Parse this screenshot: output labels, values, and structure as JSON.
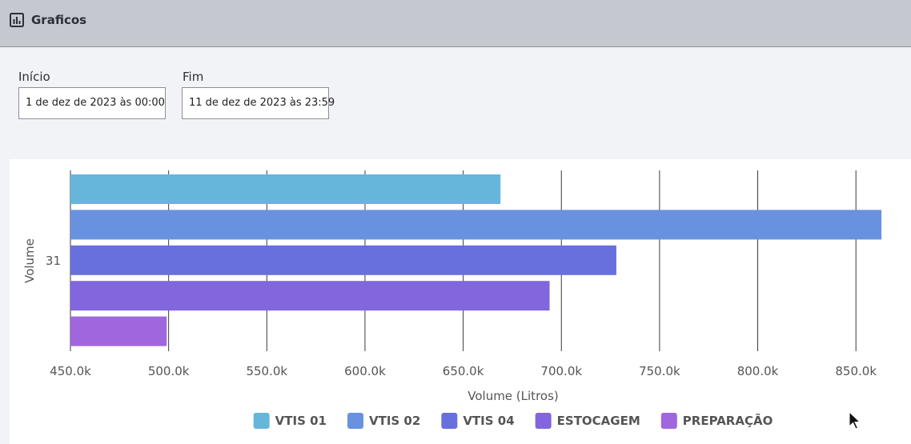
{
  "header": {
    "title": "Graficos",
    "icon": "bar-chart-icon"
  },
  "filters": {
    "start": {
      "label": "Início",
      "value": "1 de dez de 2023 às 00:00"
    },
    "end": {
      "label": "Fim",
      "value": "11 de dez de 2023 às 23:59"
    }
  },
  "chart_data": {
    "type": "bar",
    "orientation": "horizontal",
    "categories": [
      "31"
    ],
    "ylabel": "Volume",
    "xlabel": "Volume (Litros)",
    "xlim": [
      450000,
      865000
    ],
    "xticks": [
      450000,
      500000,
      550000,
      600000,
      650000,
      700000,
      750000,
      800000,
      850000
    ],
    "xtick_labels": [
      "450.0k",
      "500.0k",
      "550.0k",
      "600.0k",
      "650.0k",
      "700.0k",
      "750.0k",
      "800.0k",
      "850.0k"
    ],
    "grid": "vertical",
    "legend_position": "bottom-center",
    "series": [
      {
        "name": "VTIS 01",
        "color": "#66b6dc",
        "values": [
          669000
        ]
      },
      {
        "name": "VTIS 02",
        "color": "#6892df",
        "values": [
          863000
        ]
      },
      {
        "name": "VTIS 04",
        "color": "#6770dc",
        "values": [
          728000
        ]
      },
      {
        "name": "ESTOCAGEM",
        "color": "#8266dd",
        "values": [
          694000
        ]
      },
      {
        "name": "PREPARAÇÃO",
        "color": "#a066de",
        "values": [
          499000
        ]
      }
    ]
  }
}
